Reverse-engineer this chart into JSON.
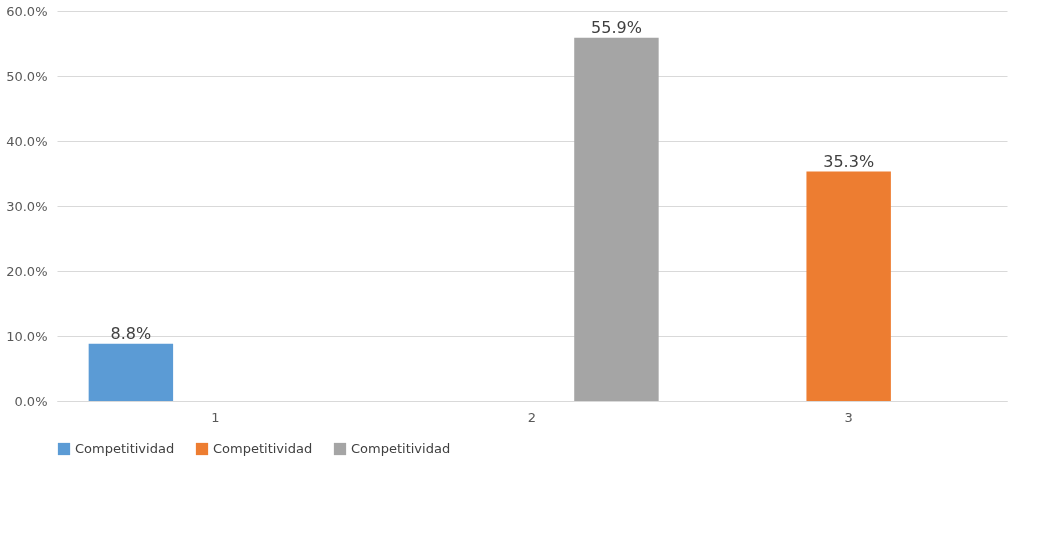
{
  "chart_data": {
    "type": "bar",
    "categories": [
      "1",
      "2",
      "3"
    ],
    "series": [
      {
        "name": "Competitividad",
        "color": "#5b9bd5",
        "values": [
          8.8,
          null,
          null
        ],
        "value_labels": [
          "8.8%",
          null,
          null
        ]
      },
      {
        "name": "Competitividad",
        "color": "#ed7d31",
        "values": [
          null,
          null,
          35.3
        ],
        "value_labels": [
          null,
          null,
          "35.3%"
        ]
      },
      {
        "name": "Competitividad",
        "color": "#a5a5a5",
        "values": [
          null,
          55.9,
          null
        ],
        "value_labels": [
          null,
          "55.9%",
          null
        ]
      }
    ],
    "ylim": [
      0,
      60
    ],
    "yticks": [
      {
        "value": 0,
        "label": "0.0%"
      },
      {
        "value": 10,
        "label": "10.0%"
      },
      {
        "value": 20,
        "label": "20.0%"
      },
      {
        "value": 30,
        "label": "30.0%"
      },
      {
        "value": 40,
        "label": "40.0%"
      },
      {
        "value": 50,
        "label": "50.0%"
      },
      {
        "value": 60,
        "label": "60.0%"
      }
    ],
    "grid": "y",
    "legend": "bottom"
  }
}
